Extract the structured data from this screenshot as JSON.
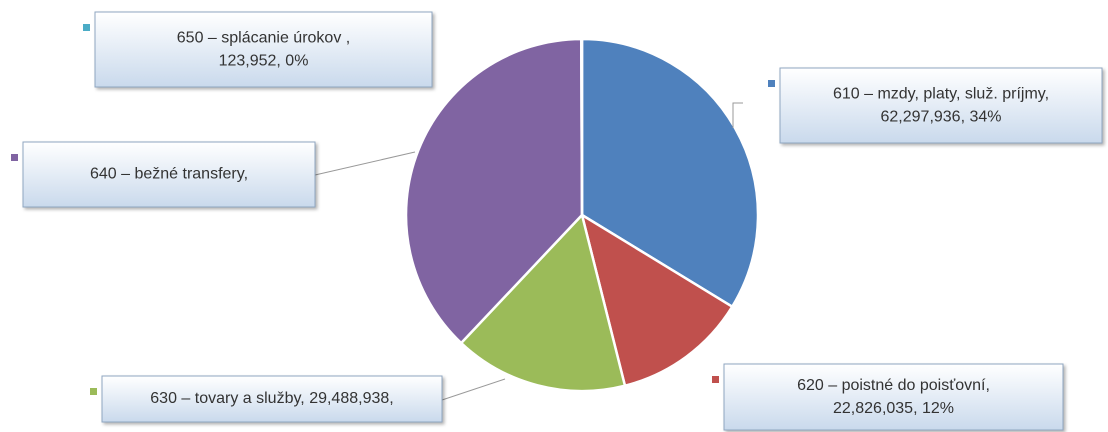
{
  "chart_data": {
    "type": "pie",
    "categories": [
      "610 – mzdy, platy, služ. príjmy,",
      "620 – poistné do poisťovní,",
      "630 – tovary a služby,",
      "640 – bežné transfery,",
      "650 – splácanie úrokov ,"
    ],
    "values": [
      62297936,
      22826035,
      29488938,
      70000000,
      123952
    ],
    "value_labels": [
      "62,297,936, 34%",
      "22,826,035, 12%",
      "29,488,938,",
      null,
      "123,952, 0%"
    ],
    "colors": [
      "#4f81bd",
      "#c0504d",
      "#9bbb59",
      "#8064a2",
      "#4bacc6"
    ]
  }
}
